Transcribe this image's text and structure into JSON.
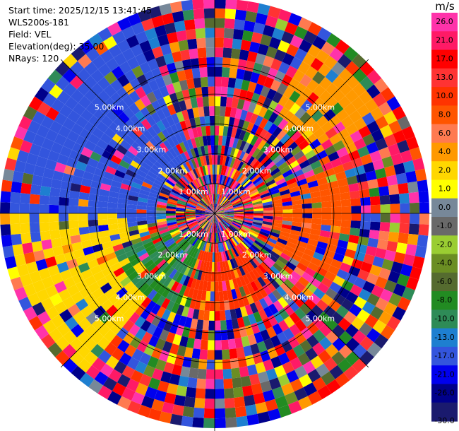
{
  "info": {
    "start_time": "Start time: 2025/12/15 13:41:45",
    "instrument": "WLS200s-181",
    "field": "Field: VEL",
    "elevation": "Elevation(deg): 35.00",
    "nrays": "NRays: 120"
  },
  "colorbar": {
    "unit": "m/s",
    "ticks": [
      "26.0",
      "21.0",
      "17.0",
      "13.0",
      "10.0",
      "8.0",
      "6.0",
      "4.0",
      "2.0",
      "1.0",
      "0.0",
      "-1.0",
      "-2.0",
      "-4.0",
      "-6.0",
      "-8.0",
      "-10.0",
      "-13.0",
      "-17.0",
      "-21.0",
      "-26.0",
      "-30.0"
    ],
    "bins": [
      {
        "lo": 26,
        "hi": 30,
        "color": "#ff33aa"
      },
      {
        "lo": 21,
        "hi": 26,
        "color": "#ff1a66"
      },
      {
        "lo": 17,
        "hi": 21,
        "color": "#ff0000"
      },
      {
        "lo": 13,
        "hi": 17,
        "color": "#ff3333"
      },
      {
        "lo": 10,
        "hi": 13,
        "color": "#ff3300"
      },
      {
        "lo": 8,
        "hi": 10,
        "color": "#ff5500"
      },
      {
        "lo": 6,
        "hi": 8,
        "color": "#ff7a50"
      },
      {
        "lo": 4,
        "hi": 6,
        "color": "#ff9900"
      },
      {
        "lo": 2,
        "hi": 4,
        "color": "#ffd700"
      },
      {
        "lo": 1,
        "hi": 2,
        "color": "#ffff00"
      },
      {
        "lo": 0,
        "hi": 1,
        "color": "#778899"
      },
      {
        "lo": -1,
        "hi": 0,
        "color": "#696969"
      },
      {
        "lo": -2,
        "hi": -1,
        "color": "#9acd32"
      },
      {
        "lo": -4,
        "hi": -2,
        "color": "#6b8e23"
      },
      {
        "lo": -6,
        "hi": -4,
        "color": "#556b2f"
      },
      {
        "lo": -8,
        "hi": -6,
        "color": "#228b22"
      },
      {
        "lo": -10,
        "hi": -8,
        "color": "#2e8b57"
      },
      {
        "lo": -13,
        "hi": -10,
        "color": "#1e7fd0"
      },
      {
        "lo": -17,
        "hi": -13,
        "color": "#3355dd"
      },
      {
        "lo": -21,
        "hi": -17,
        "color": "#0000ee"
      },
      {
        "lo": -26,
        "hi": -21,
        "color": "#00008b"
      },
      {
        "lo": -30,
        "hi": -26,
        "color": "#1a1a6e"
      }
    ]
  },
  "chart_data": {
    "type": "heatmap",
    "projection": "polar PPI",
    "field": "VEL",
    "unit": "m/s",
    "n_rays": 120,
    "range_rings_km": [
      1,
      2,
      3,
      4,
      5
    ],
    "ring_label_text": [
      "1.00km",
      "2.00km",
      "3.00km",
      "4.00km",
      "5.00km"
    ],
    "max_range_km": 7.2,
    "value_range": [
      -30,
      30
    ],
    "features": [
      {
        "azimuth_deg": [
          70,
          120
        ],
        "range_km": [
          2.0,
          4.5
        ],
        "velocity": 9
      },
      {
        "azimuth_deg": [
          140,
          200
        ],
        "range_km": [
          1.2,
          3.2
        ],
        "velocity": 12
      },
      {
        "azimuth_deg": [
          200,
          250
        ],
        "range_km": [
          1.0,
          3.5
        ],
        "velocity": -8
      },
      {
        "azimuth_deg": [
          220,
          270
        ],
        "range_km": [
          3.0,
          6.8
        ],
        "velocity": 3
      },
      {
        "azimuth_deg": [
          260,
          340
        ],
        "range_km": [
          2.0,
          6.8
        ],
        "velocity": -14
      },
      {
        "azimuth_deg": [
          30,
          60
        ],
        "range_km": [
          4.0,
          6.5
        ],
        "velocity": 5
      }
    ]
  }
}
